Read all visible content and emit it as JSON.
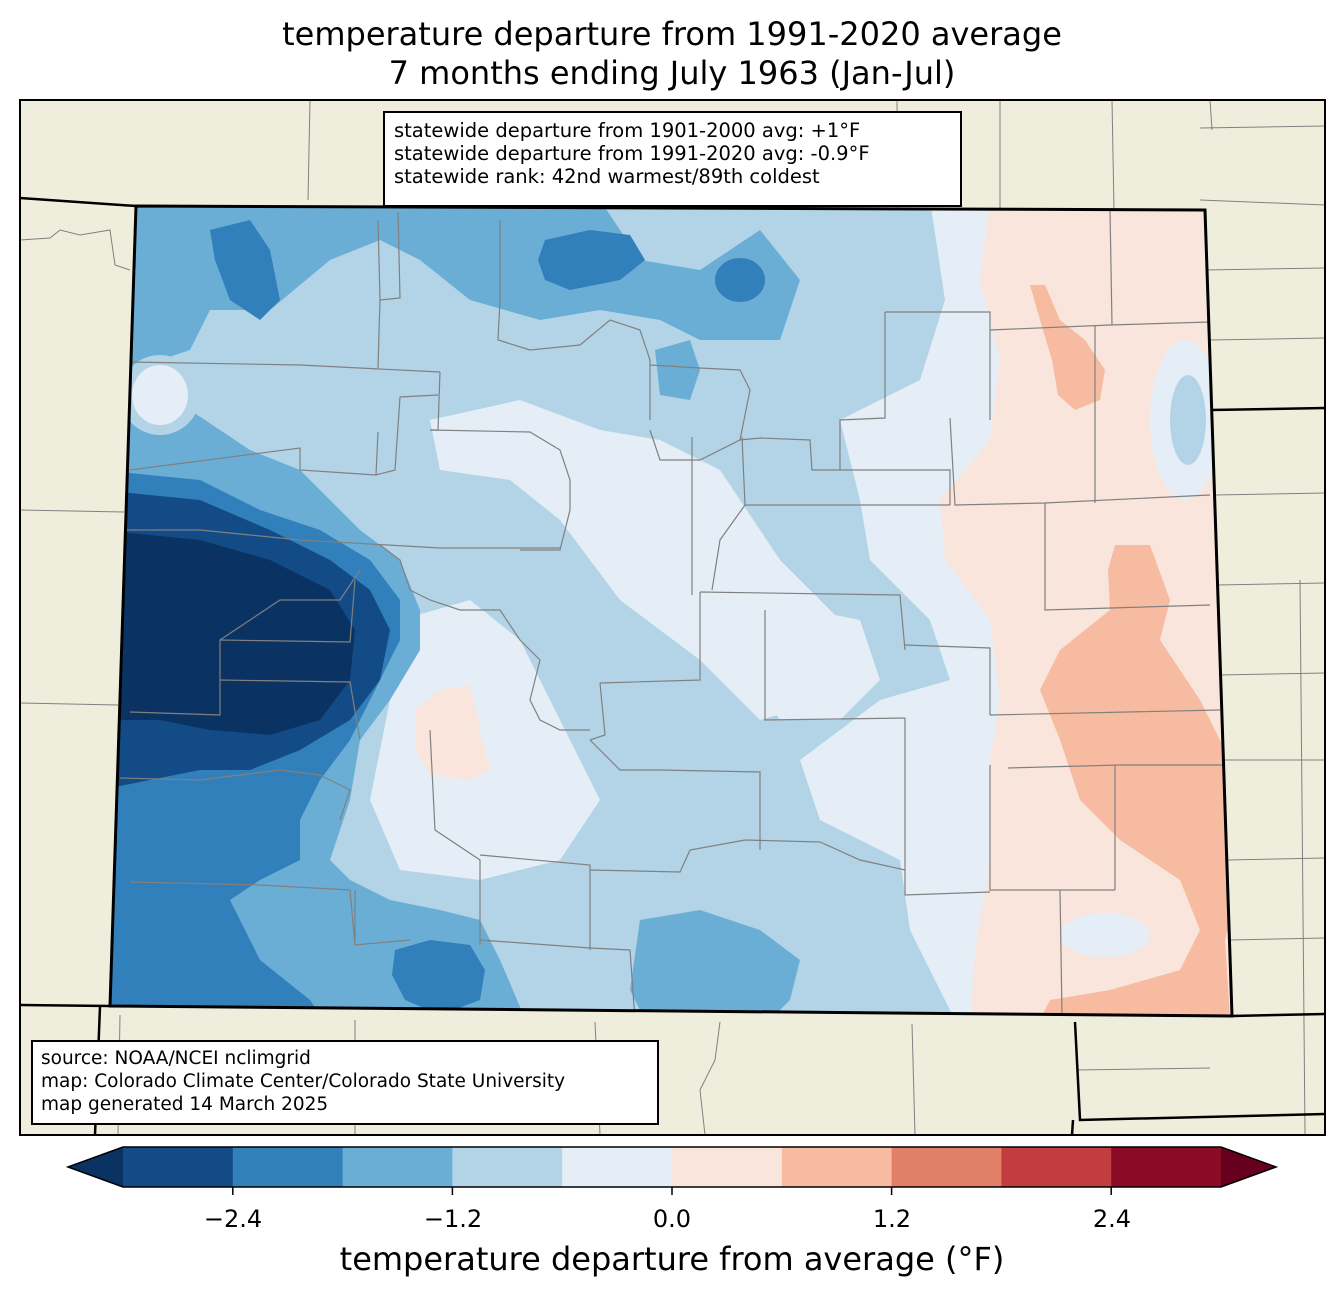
{
  "title": {
    "line1": "temperature departure from 1991-2020 average",
    "line2": "7 months ending July 1963 (Jan-Jul)"
  },
  "stats": {
    "line1": "statewide departure from 1901-2000 avg: +1°F",
    "line2": "statewide departure from 1991-2020 avg: -0.9°F",
    "line3": "statewide rank: 42nd warmest/89th coldest"
  },
  "source": {
    "line1": "source: NOAA/NCEI nclimgrid",
    "line2": "map: Colorado Climate Center/Colorado State University",
    "line3": "map generated 14 March 2025"
  },
  "colorbar": {
    "label": "temperature departure from average (°F)",
    "tick_labels": [
      "−2.4",
      "−1.2",
      "0.0",
      "1.2",
      "2.4"
    ],
    "tick_values": [
      -2.4,
      -1.2,
      0.0,
      1.2,
      2.4
    ],
    "bounds": [
      -3.0,
      -2.4,
      -1.8,
      -1.2,
      -0.6,
      0.0,
      0.6,
      1.2,
      1.8,
      2.4,
      3.0
    ],
    "colors": [
      "#134b87",
      "#317fbb",
      "#6aaed6",
      "#b3d4e6",
      "#e5eef6",
      "#fae5dc",
      "#f7bba2",
      "#e27f69",
      "#c23d3f",
      "#8a0b25"
    ],
    "under_color": "#0a3363",
    "over_color": "#67001f"
  },
  "map_colors": {
    "background": "#efeedc",
    "state_border": "#000000",
    "county_line": "#808080"
  }
}
